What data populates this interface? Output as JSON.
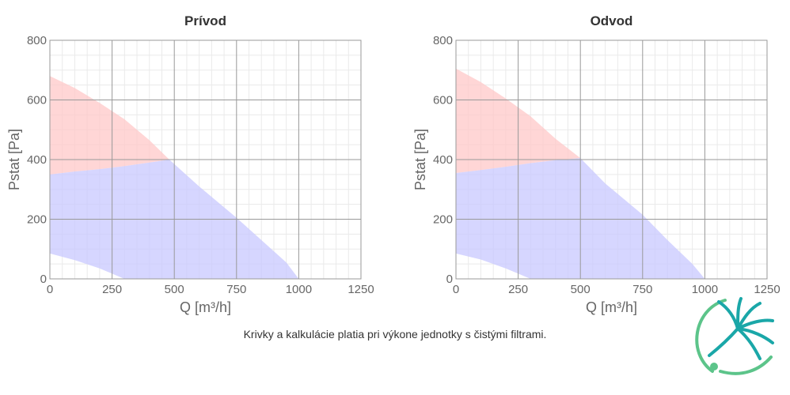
{
  "chart_data": [
    {
      "type": "area",
      "title": "Prívod",
      "xlabel": "Q [m³/h]",
      "ylabel": "Pstat [Pa]",
      "xlim": [
        0,
        1250
      ],
      "ylim": [
        0,
        800
      ],
      "xticks": [
        "0",
        "250",
        "500",
        "750",
        "1000",
        "1250"
      ],
      "yticks": [
        "0",
        "200",
        "400",
        "600",
        "800"
      ],
      "grid": true,
      "regions": [
        {
          "name": "",
          "color": "#ffc8c8",
          "points": [
            [
              0,
              680
            ],
            [
              100,
              640
            ],
            [
              200,
              590
            ],
            [
              300,
              535
            ],
            [
              400,
              465
            ],
            [
              480,
              400
            ],
            [
              400,
              390
            ],
            [
              300,
              378
            ],
            [
              200,
              368
            ],
            [
              100,
              360
            ],
            [
              0,
              350
            ]
          ]
        },
        {
          "name": "",
          "color": "#c8c8ff",
          "points": [
            [
              0,
              350
            ],
            [
              100,
              360
            ],
            [
              200,
              368
            ],
            [
              300,
              378
            ],
            [
              400,
              390
            ],
            [
              480,
              400
            ],
            [
              600,
              310
            ],
            [
              750,
              205
            ],
            [
              850,
              130
            ],
            [
              950,
              55
            ],
            [
              1000,
              0
            ],
            [
              300,
              0
            ],
            [
              200,
              35
            ],
            [
              100,
              63
            ],
            [
              0,
              85
            ]
          ]
        }
      ]
    },
    {
      "type": "area",
      "title": "Odvod",
      "xlabel": "Q [m³/h]",
      "ylabel": "Pstat [Pa]",
      "xlim": [
        0,
        1250
      ],
      "ylim": [
        0,
        800
      ],
      "xticks": [
        "0",
        "250",
        "500",
        "750",
        "1000",
        "1250"
      ],
      "yticks": [
        "0",
        "200",
        "400",
        "600",
        "800"
      ],
      "grid": true,
      "regions": [
        {
          "name": "",
          "color": "#ffc8c8",
          "points": [
            [
              0,
              705
            ],
            [
              100,
              660
            ],
            [
              200,
              605
            ],
            [
              300,
              545
            ],
            [
              400,
              470
            ],
            [
              500,
              405
            ],
            [
              400,
              398
            ],
            [
              300,
              388
            ],
            [
              200,
              376
            ],
            [
              100,
              365
            ],
            [
              0,
              355
            ]
          ]
        },
        {
          "name": "",
          "color": "#c8c8ff",
          "points": [
            [
              0,
              355
            ],
            [
              100,
              365
            ],
            [
              200,
              376
            ],
            [
              300,
              388
            ],
            [
              400,
              398
            ],
            [
              500,
              405
            ],
            [
              600,
              320
            ],
            [
              750,
              215
            ],
            [
              850,
              130
            ],
            [
              950,
              50
            ],
            [
              1000,
              0
            ],
            [
              300,
              0
            ],
            [
              200,
              35
            ],
            [
              100,
              65
            ],
            [
              0,
              85
            ]
          ]
        }
      ]
    }
  ],
  "footnote": "Krivky a kalkulácie platia pri výkone jednotky s čistými filtrami.",
  "colors": {
    "logo_teal": "#1aa7a8",
    "logo_green": "#5cc48a"
  },
  "logo": {
    "icon": "fan-logo-icon"
  }
}
